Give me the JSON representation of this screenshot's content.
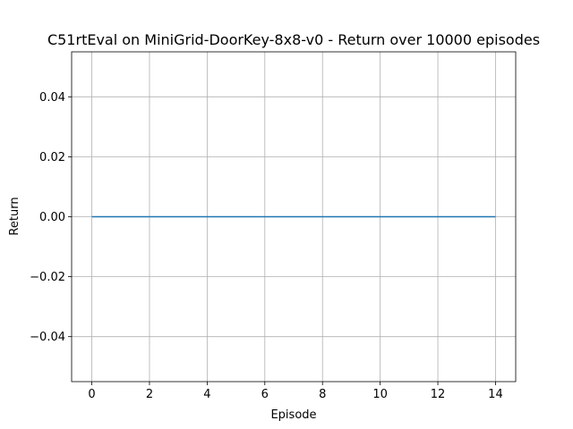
{
  "chart_data": {
    "type": "line",
    "title": "C51rtEval on MiniGrid-DoorKey-8x8-v0 - Return over 10000 episodes",
    "xlabel": "Episode",
    "ylabel": "Return",
    "xlim": [
      -0.7,
      14.7
    ],
    "ylim": [
      -0.055,
      0.055
    ],
    "xticks": [
      0,
      2,
      4,
      6,
      8,
      10,
      12,
      14
    ],
    "xtick_labels": [
      "0",
      "2",
      "4",
      "6",
      "8",
      "10",
      "12",
      "14"
    ],
    "yticks": [
      -0.04,
      -0.02,
      0.0,
      0.02,
      0.04
    ],
    "ytick_labels": [
      "−0.04",
      "−0.02",
      "0.00",
      "0.02",
      "0.04"
    ],
    "grid": true,
    "legend": false,
    "series": [
      {
        "color": "#1f77b4",
        "x": [
          0,
          1,
          2,
          3,
          4,
          5,
          6,
          7,
          8,
          9,
          10,
          11,
          12,
          13,
          14
        ],
        "y": [
          0,
          0,
          0,
          0,
          0,
          0,
          0,
          0,
          0,
          0,
          0,
          0,
          0,
          0,
          0
        ]
      }
    ]
  }
}
